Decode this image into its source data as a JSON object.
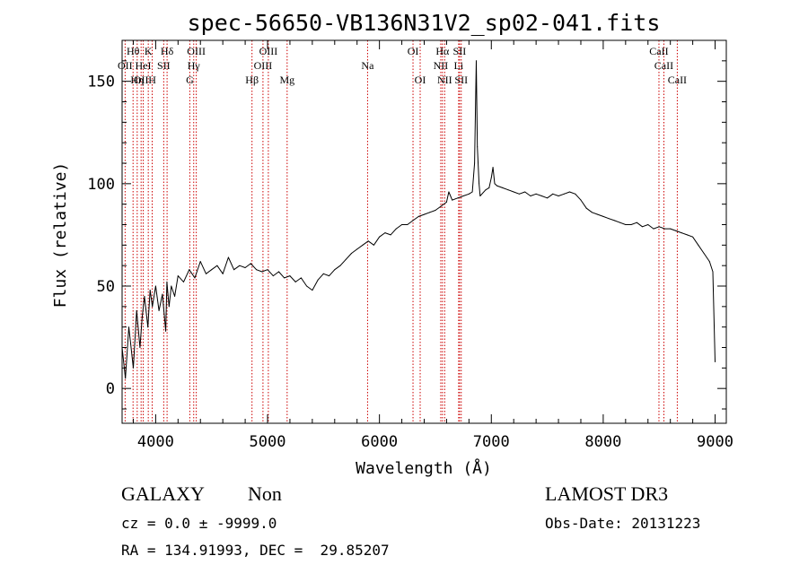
{
  "chart_data": {
    "type": "line",
    "title": "spec-56650-VB136N31V2_sp02-041.fits",
    "xlabel": "Wavelength (Å)",
    "ylabel": "Flux (relative)",
    "xlim": [
      3700,
      9100
    ],
    "ylim": [
      -17,
      170
    ],
    "xticks": [
      {
        "value": 4000,
        "label": "4000"
      },
      {
        "value": 5000,
        "label": "5000"
      },
      {
        "value": 6000,
        "label": "6000"
      },
      {
        "value": 7000,
        "label": "7000"
      },
      {
        "value": 8000,
        "label": "8000"
      },
      {
        "value": 9000,
        "label": "9000"
      }
    ],
    "yticks": [
      {
        "value": 0,
        "label": "0"
      },
      {
        "value": 50,
        "label": "50"
      },
      {
        "value": 100,
        "label": "100"
      },
      {
        "value": 150,
        "label": "150"
      }
    ],
    "series": [
      {
        "name": "spectrum",
        "color": "#000000",
        "points": [
          [
            3700,
            20
          ],
          [
            3730,
            5
          ],
          [
            3760,
            30
          ],
          [
            3800,
            10
          ],
          [
            3830,
            38
          ],
          [
            3860,
            20
          ],
          [
            3880,
            35
          ],
          [
            3900,
            45
          ],
          [
            3930,
            30
          ],
          [
            3950,
            48
          ],
          [
            3970,
            40
          ],
          [
            4000,
            50
          ],
          [
            4030,
            38
          ],
          [
            4060,
            46
          ],
          [
            4090,
            28
          ],
          [
            4100,
            52
          ],
          [
            4120,
            40
          ],
          [
            4140,
            50
          ],
          [
            4170,
            45
          ],
          [
            4200,
            55
          ],
          [
            4250,
            52
          ],
          [
            4300,
            58
          ],
          [
            4350,
            54
          ],
          [
            4400,
            62
          ],
          [
            4450,
            56
          ],
          [
            4500,
            58
          ],
          [
            4550,
            60
          ],
          [
            4600,
            56
          ],
          [
            4650,
            64
          ],
          [
            4700,
            58
          ],
          [
            4750,
            60
          ],
          [
            4800,
            59
          ],
          [
            4850,
            61
          ],
          [
            4900,
            58
          ],
          [
            4950,
            57
          ],
          [
            5000,
            58
          ],
          [
            5050,
            55
          ],
          [
            5100,
            57
          ],
          [
            5150,
            54
          ],
          [
            5200,
            55
          ],
          [
            5250,
            52
          ],
          [
            5300,
            54
          ],
          [
            5350,
            50
          ],
          [
            5400,
            48
          ],
          [
            5450,
            53
          ],
          [
            5500,
            56
          ],
          [
            5550,
            55
          ],
          [
            5600,
            58
          ],
          [
            5650,
            60
          ],
          [
            5700,
            63
          ],
          [
            5750,
            66
          ],
          [
            5800,
            68
          ],
          [
            5850,
            70
          ],
          [
            5900,
            72
          ],
          [
            5950,
            70
          ],
          [
            6000,
            74
          ],
          [
            6050,
            76
          ],
          [
            6100,
            75
          ],
          [
            6150,
            78
          ],
          [
            6200,
            80
          ],
          [
            6250,
            80
          ],
          [
            6300,
            82
          ],
          [
            6350,
            84
          ],
          [
            6400,
            85
          ],
          [
            6450,
            86
          ],
          [
            6500,
            87
          ],
          [
            6550,
            89
          ],
          [
            6600,
            91
          ],
          [
            6620,
            96
          ],
          [
            6650,
            92
          ],
          [
            6700,
            93
          ],
          [
            6750,
            94
          ],
          [
            6800,
            95
          ],
          [
            6830,
            96
          ],
          [
            6850,
            110
          ],
          [
            6865,
            160
          ],
          [
            6875,
            118
          ],
          [
            6890,
            100
          ],
          [
            6900,
            94
          ],
          [
            6950,
            97
          ],
          [
            6980,
            98
          ],
          [
            7000,
            103
          ],
          [
            7015,
            108
          ],
          [
            7030,
            100
          ],
          [
            7050,
            99
          ],
          [
            7100,
            98
          ],
          [
            7150,
            97
          ],
          [
            7200,
            96
          ],
          [
            7250,
            95
          ],
          [
            7300,
            96
          ],
          [
            7350,
            94
          ],
          [
            7400,
            95
          ],
          [
            7450,
            94
          ],
          [
            7500,
            93
          ],
          [
            7550,
            95
          ],
          [
            7600,
            94
          ],
          [
            7650,
            95
          ],
          [
            7700,
            96
          ],
          [
            7750,
            95
          ],
          [
            7800,
            92
          ],
          [
            7850,
            88
          ],
          [
            7900,
            86
          ],
          [
            7950,
            85
          ],
          [
            8000,
            84
          ],
          [
            8050,
            83
          ],
          [
            8100,
            82
          ],
          [
            8150,
            81
          ],
          [
            8200,
            80
          ],
          [
            8250,
            80
          ],
          [
            8300,
            81
          ],
          [
            8350,
            79
          ],
          [
            8400,
            80
          ],
          [
            8450,
            78
          ],
          [
            8500,
            79
          ],
          [
            8550,
            78
          ],
          [
            8600,
            78
          ],
          [
            8650,
            77
          ],
          [
            8700,
            76
          ],
          [
            8750,
            75
          ],
          [
            8800,
            74
          ],
          [
            8850,
            70
          ],
          [
            8900,
            66
          ],
          [
            8950,
            62
          ],
          [
            8980,
            57
          ],
          [
            9000,
            13
          ]
        ]
      }
    ],
    "line_marker_color": "#cc0000",
    "line_markers": [
      {
        "name": "OII",
        "wavelength": 3727,
        "label_row": 1
      },
      {
        "name": "Hθ",
        "wavelength": 3798,
        "label_row": 0
      },
      {
        "name": "Hη",
        "wavelength": 3835,
        "label_row": 2
      },
      {
        "name": "OII",
        "wavelength": 3870,
        "label_row": 2
      },
      {
        "name": "HeI",
        "wavelength": 3889,
        "label_row": 1
      },
      {
        "name": "K",
        "wavelength": 3934,
        "label_row": 0
      },
      {
        "name": "H",
        "wavelength": 3969,
        "label_row": 2
      },
      {
        "name": "Hδ",
        "wavelength": 4102,
        "label_row": 0
      },
      {
        "name": "SII",
        "wavelength": 4072,
        "label_row": 1
      },
      {
        "name": "G",
        "wavelength": 4305,
        "label_row": 2
      },
      {
        "name": "Hγ",
        "wavelength": 4340,
        "label_row": 1
      },
      {
        "name": "OIII",
        "wavelength": 4363,
        "label_row": 0
      },
      {
        "name": "Hβ",
        "wavelength": 4861,
        "label_row": 2
      },
      {
        "name": "OIII",
        "wavelength": 4959,
        "label_row": 1
      },
      {
        "name": "OIII",
        "wavelength": 5007,
        "label_row": 0
      },
      {
        "name": "Mg",
        "wavelength": 5175,
        "label_row": 2
      },
      {
        "name": "Na",
        "wavelength": 5894,
        "label_row": 1
      },
      {
        "name": "OI",
        "wavelength": 6300,
        "label_row": 0
      },
      {
        "name": "OI",
        "wavelength": 6364,
        "label_row": 2
      },
      {
        "name": "NII",
        "wavelength": 6548,
        "label_row": 1
      },
      {
        "name": "Hα",
        "wavelength": 6563,
        "label_row": 0
      },
      {
        "name": "NII",
        "wavelength": 6583,
        "label_row": 2
      },
      {
        "name": "Li",
        "wavelength": 6708,
        "label_row": 1
      },
      {
        "name": "SII",
        "wavelength": 6716,
        "label_row": 0
      },
      {
        "name": "SII",
        "wavelength": 6731,
        "label_row": 2
      },
      {
        "name": "CaII",
        "wavelength": 8498,
        "label_row": 0
      },
      {
        "name": "CaII",
        "wavelength": 8542,
        "label_row": 1
      },
      {
        "name": "CaII",
        "wavelength": 8662,
        "label_row": 2
      }
    ]
  },
  "footer": {
    "object_class": "GALAXY",
    "subclass": "Non",
    "survey": "LAMOST DR3",
    "cz_text": "cz = 0.0 ± -9999.0",
    "obs_date_text": "Obs-Date: 20131223",
    "coords_text": "RA = 134.91993, DEC =  29.85207"
  }
}
